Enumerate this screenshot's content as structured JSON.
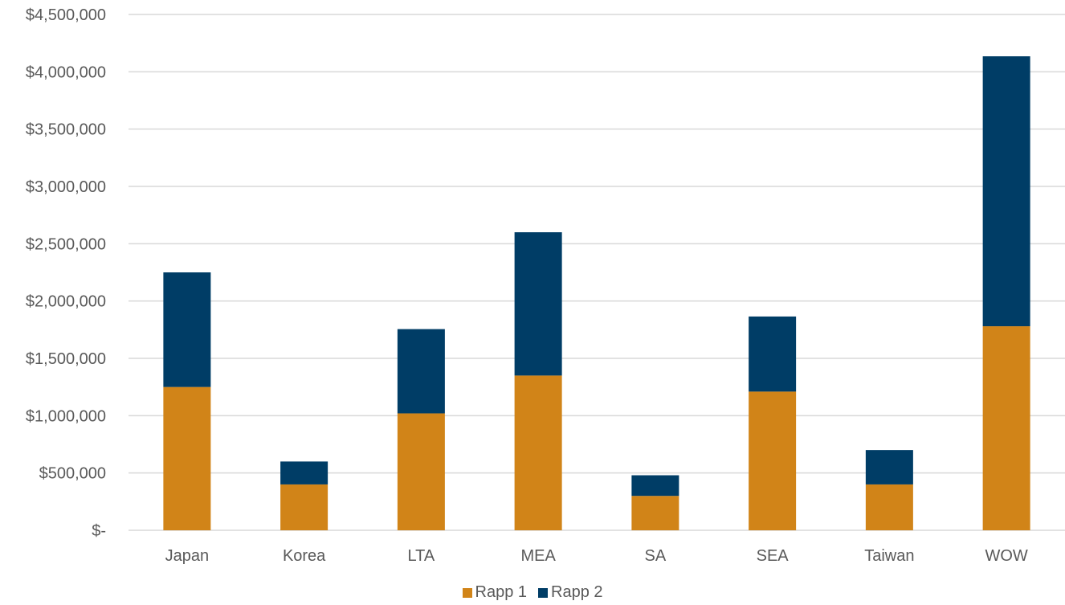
{
  "chart_data": {
    "type": "bar",
    "stacked": true,
    "categories": [
      "Japan",
      "Korea",
      "LTA",
      "MEA",
      "SA",
      "SEA",
      "Taiwan",
      "WOW"
    ],
    "series": [
      {
        "name": "Rapp 1",
        "color": "#D18418",
        "values": [
          1250000,
          400000,
          1020000,
          1350000,
          300000,
          1210000,
          400000,
          1780000
        ]
      },
      {
        "name": "Rapp 2",
        "color": "#003D66",
        "values": [
          1000000,
          200000,
          735000,
          1250000,
          180000,
          655000,
          300000,
          2355000
        ]
      }
    ],
    "y_ticks": [
      "$-",
      "$500,000",
      "$1,000,000",
      "$1,500,000",
      "$2,000,000",
      "$2,500,000",
      "$3,000,000",
      "$3,500,000",
      "$4,000,000",
      "$4,500,000"
    ],
    "ylim": [
      0,
      4500000
    ],
    "y_tick_step": 500000,
    "grid": true,
    "legend_position": "bottom",
    "colors": {
      "grid": "#D9D9D9",
      "tick_text": "#595959"
    }
  }
}
